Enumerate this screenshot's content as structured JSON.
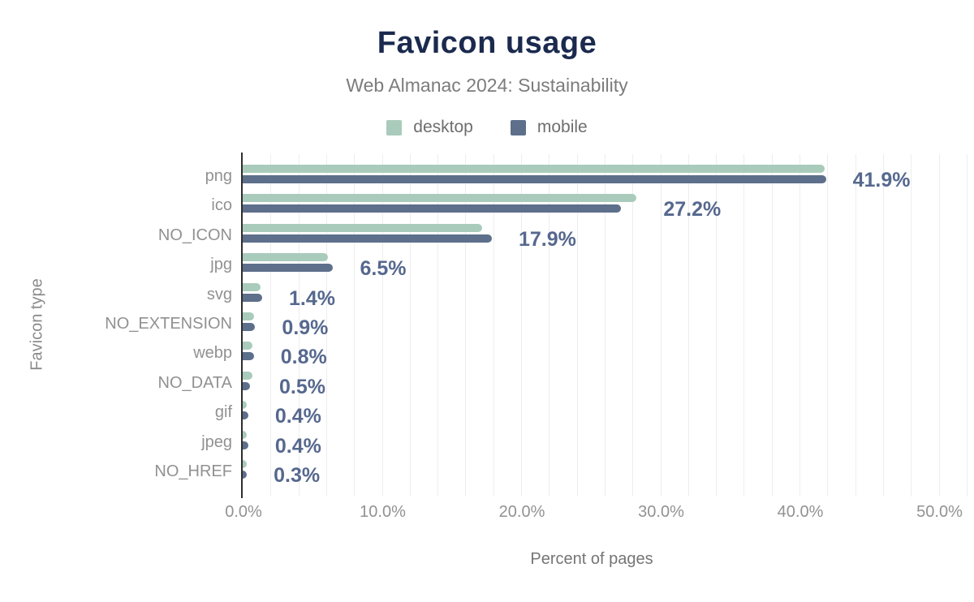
{
  "chart_data": {
    "type": "bar",
    "orientation": "horizontal",
    "title": "Favicon usage",
    "subtitle": "Web Almanac 2024: Sustainability",
    "xlabel": "Percent of pages",
    "ylabel": "Favicon type",
    "xlim": [
      0,
      52.5
    ],
    "grid_interval_pct": 2,
    "x_ticks": [
      {
        "label": "0.0%",
        "value": 0
      },
      {
        "label": "10.0%",
        "value": 10
      },
      {
        "label": "20.0%",
        "value": 20
      },
      {
        "label": "30.0%",
        "value": 30
      },
      {
        "label": "40.0%",
        "value": 40
      },
      {
        "label": "50.0%",
        "value": 50
      }
    ],
    "legend": [
      {
        "name": "desktop",
        "color": "#a9cbbb"
      },
      {
        "name": "mobile",
        "color": "#5d6f8b"
      }
    ],
    "categories": [
      "png",
      "ico",
      "NO_ICON",
      "jpg",
      "svg",
      "NO_EXTENSION",
      "webp",
      "NO_DATA",
      "gif",
      "jpeg",
      "NO_HREF"
    ],
    "series": [
      {
        "name": "desktop",
        "values": [
          41.8,
          28.3,
          17.2,
          6.1,
          1.3,
          0.8,
          0.7,
          0.7,
          0.3,
          0.3,
          0.25
        ]
      },
      {
        "name": "mobile",
        "values": [
          41.9,
          27.2,
          17.9,
          6.5,
          1.4,
          0.9,
          0.8,
          0.5,
          0.4,
          0.4,
          0.3
        ]
      }
    ],
    "value_labels": [
      "41.9%",
      "27.2%",
      "17.9%",
      "6.5%",
      "1.4%",
      "0.9%",
      "0.8%",
      "0.5%",
      "0.4%",
      "0.4%",
      "0.3%"
    ]
  },
  "colors": {
    "title": "#1b2a4e",
    "subtitle": "#7c7c7c",
    "axis_text": "#929292",
    "value_label": "#56688e",
    "gridline": "#ededed",
    "axis_line": "#2e2e2e",
    "desktop_bar": "#a9cbbb",
    "mobile_bar": "#5d6f8b"
  }
}
